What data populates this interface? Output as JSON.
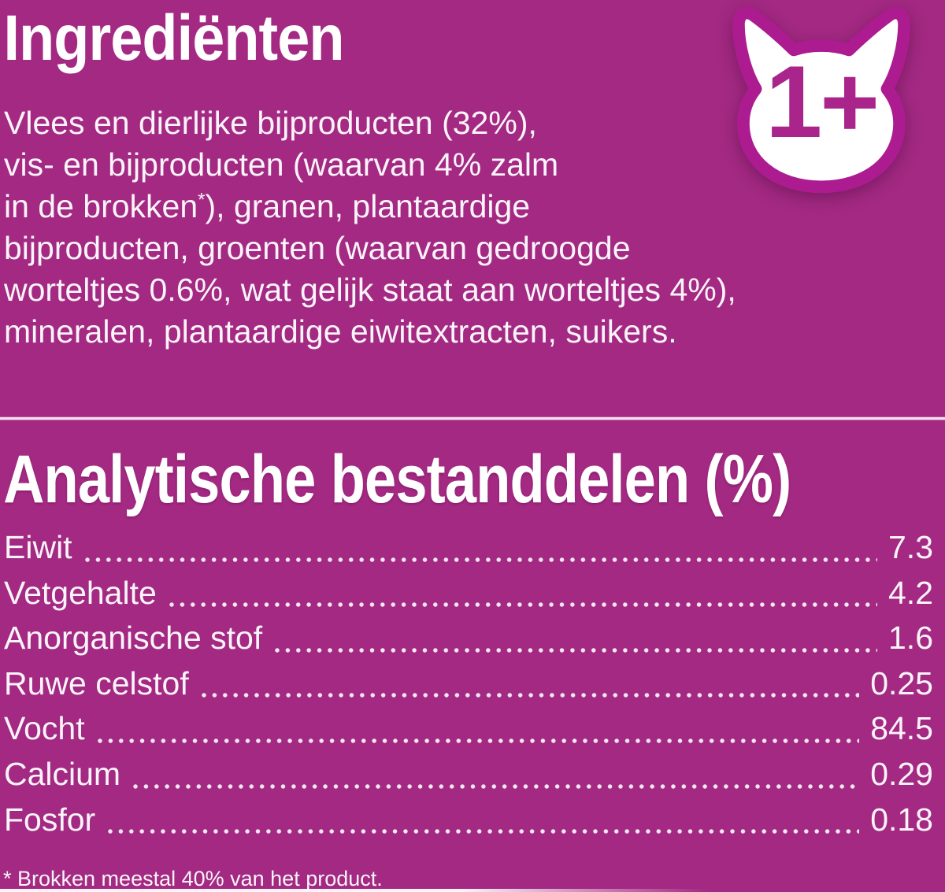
{
  "colors": {
    "background": "#a32982",
    "accent_magenta": "#ac1c90",
    "text": "#fbf4fa",
    "divider": "#f3dfef"
  },
  "ingredients": {
    "title": "Ingrediënten",
    "lines": [
      "Vlees en dierlijke bijproducten (32%),",
      "vis- en bijproducten (waarvan 4% zalm",
      "in de brokken*), granen, plantaardige",
      "bijproducten, groenten (waarvan gedroogde",
      "worteltjes 0.6%, wat gelijk staat aan worteltjes 4%),",
      "mineralen, plantaardige eiwitextracten, suikers."
    ]
  },
  "age_badge": {
    "icon": "cat-head-icon",
    "label": "1+"
  },
  "analytical": {
    "title": "Analytische bestanddelen (%)",
    "rows": [
      {
        "label": "Eiwit",
        "value": "7.3"
      },
      {
        "label": "Vetgehalte",
        "value": "4.2"
      },
      {
        "label": "Anorganische stof",
        "value": "1.6"
      },
      {
        "label": "Ruwe celstof",
        "value": "0.25"
      },
      {
        "label": "Vocht",
        "value": "84.5"
      },
      {
        "label": "Calcium",
        "value": "0.29"
      },
      {
        "label": "Fosfor",
        "value": "0.18"
      }
    ]
  },
  "footnote": "* Brokken meestal 40% van het product."
}
